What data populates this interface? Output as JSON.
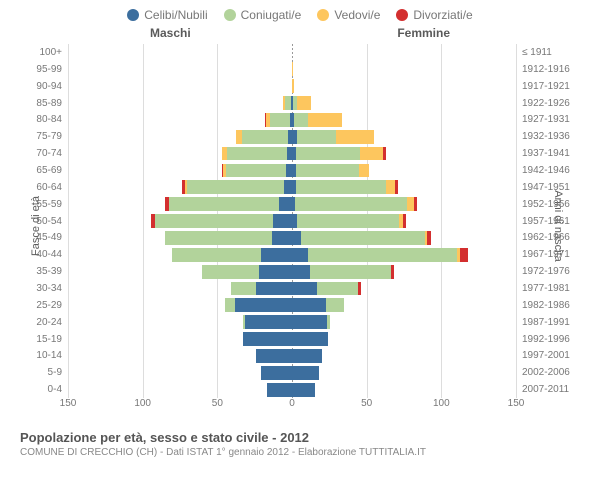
{
  "legend": [
    {
      "label": "Celibi/Nubili",
      "color": "#3c6e9e"
    },
    {
      "label": "Coniugati/e",
      "color": "#b2d39b"
    },
    {
      "label": "Vedovi/e",
      "color": "#fdc65e"
    },
    {
      "label": "Divorziati/e",
      "color": "#d32f2f"
    }
  ],
  "sides": {
    "left": "Maschi",
    "right": "Femmine"
  },
  "y_axis_left": "Fasce di età",
  "y_axis_right": "Anni di nascita",
  "x_ticks": [
    150,
    100,
    50,
    0,
    50,
    100,
    150
  ],
  "x_max": 150,
  "colors": {
    "single": "#3c6e9e",
    "married": "#b2d39b",
    "widowed": "#fdc65e",
    "divorced": "#d32f2f",
    "grid": "#dddddd",
    "center_line": "#999999",
    "background": "#ffffff"
  },
  "title": "Popolazione per età, sesso e stato civile - 2012",
  "subtitle": "COMUNE DI CRECCHIO (CH) - Dati ISTAT 1° gennaio 2012 - Elaborazione TUTTITALIA.IT",
  "rows": [
    {
      "age": "100+",
      "birth": "≤ 1911",
      "m": {
        "s": 0,
        "c": 0,
        "w": 0,
        "d": 0
      },
      "f": {
        "s": 0,
        "c": 0,
        "w": 2,
        "d": 0
      }
    },
    {
      "age": "95-99",
      "birth": "1912-1916",
      "m": {
        "s": 0,
        "c": 1,
        "w": 1,
        "d": 0
      },
      "f": {
        "s": 0,
        "c": 0,
        "w": 5,
        "d": 0
      }
    },
    {
      "age": "90-94",
      "birth": "1917-1921",
      "m": {
        "s": 0,
        "c": 3,
        "w": 3,
        "d": 0
      },
      "f": {
        "s": 1,
        "c": 1,
        "w": 12,
        "d": 0
      }
    },
    {
      "age": "85-89",
      "birth": "1922-1926",
      "m": {
        "s": 2,
        "c": 22,
        "w": 6,
        "d": 0
      },
      "f": {
        "s": 2,
        "c": 10,
        "w": 32,
        "d": 0
      }
    },
    {
      "age": "80-84",
      "birth": "1927-1931",
      "m": {
        "s": 3,
        "c": 40,
        "w": 8,
        "d": 1
      },
      "f": {
        "s": 3,
        "c": 20,
        "w": 48,
        "d": 0
      }
    },
    {
      "age": "75-79",
      "birth": "1932-1936",
      "m": {
        "s": 5,
        "c": 62,
        "w": 8,
        "d": 0
      },
      "f": {
        "s": 5,
        "c": 44,
        "w": 42,
        "d": 0
      }
    },
    {
      "age": "70-74",
      "birth": "1937-1941",
      "m": {
        "s": 6,
        "c": 72,
        "w": 6,
        "d": 0
      },
      "f": {
        "s": 4,
        "c": 66,
        "w": 24,
        "d": 3
      }
    },
    {
      "age": "65-69",
      "birth": "1942-1946",
      "m": {
        "s": 7,
        "c": 72,
        "w": 3,
        "d": 2
      },
      "f": {
        "s": 4,
        "c": 72,
        "w": 12,
        "d": 0
      }
    },
    {
      "age": "60-64",
      "birth": "1947-1951",
      "m": {
        "s": 8,
        "c": 92,
        "w": 2,
        "d": 3
      },
      "f": {
        "s": 4,
        "c": 88,
        "w": 8,
        "d": 3
      }
    },
    {
      "age": "55-59",
      "birth": "1952-1956",
      "m": {
        "s": 12,
        "c": 97,
        "w": 0,
        "d": 4
      },
      "f": {
        "s": 3,
        "c": 100,
        "w": 6,
        "d": 3
      }
    },
    {
      "age": "50-54",
      "birth": "1957-1961",
      "m": {
        "s": 16,
        "c": 100,
        "w": 0,
        "d": 3
      },
      "f": {
        "s": 5,
        "c": 95,
        "w": 4,
        "d": 3
      }
    },
    {
      "age": "45-49",
      "birth": "1962-1966",
      "m": {
        "s": 18,
        "c": 95,
        "w": 0,
        "d": 0
      },
      "f": {
        "s": 8,
        "c": 105,
        "w": 2,
        "d": 3
      }
    },
    {
      "age": "40-44",
      "birth": "1967-1971",
      "m": {
        "s": 28,
        "c": 82,
        "w": 0,
        "d": 0
      },
      "f": {
        "s": 12,
        "c": 113,
        "w": 2,
        "d": 6
      }
    },
    {
      "age": "35-39",
      "birth": "1972-1976",
      "m": {
        "s": 35,
        "c": 60,
        "w": 0,
        "d": 0
      },
      "f": {
        "s": 18,
        "c": 80,
        "w": 0,
        "d": 3
      }
    },
    {
      "age": "30-34",
      "birth": "1977-1981",
      "m": {
        "s": 46,
        "c": 32,
        "w": 0,
        "d": 0
      },
      "f": {
        "s": 30,
        "c": 50,
        "w": 0,
        "d": 3
      }
    },
    {
      "age": "25-29",
      "birth": "1982-1986",
      "m": {
        "s": 70,
        "c": 12,
        "w": 0,
        "d": 0
      },
      "f": {
        "s": 48,
        "c": 24,
        "w": 0,
        "d": 0
      }
    },
    {
      "age": "20-24",
      "birth": "1987-1991",
      "m": {
        "s": 68,
        "c": 2,
        "w": 0,
        "d": 0
      },
      "f": {
        "s": 56,
        "c": 6,
        "w": 0,
        "d": 0
      }
    },
    {
      "age": "15-19",
      "birth": "1992-1996",
      "m": {
        "s": 70,
        "c": 0,
        "w": 0,
        "d": 0
      },
      "f": {
        "s": 60,
        "c": 0,
        "w": 0,
        "d": 0
      }
    },
    {
      "age": "10-14",
      "birth": "1997-2001",
      "m": {
        "s": 60,
        "c": 0,
        "w": 0,
        "d": 0
      },
      "f": {
        "s": 55,
        "c": 0,
        "w": 0,
        "d": 0
      }
    },
    {
      "age": "5-9",
      "birth": "2002-2006",
      "m": {
        "s": 56,
        "c": 0,
        "w": 0,
        "d": 0
      },
      "f": {
        "s": 52,
        "c": 0,
        "w": 0,
        "d": 0
      }
    },
    {
      "age": "0-4",
      "birth": "2007-2011",
      "m": {
        "s": 50,
        "c": 0,
        "w": 0,
        "d": 0
      },
      "f": {
        "s": 48,
        "c": 0,
        "w": 0,
        "d": 0
      }
    }
  ]
}
